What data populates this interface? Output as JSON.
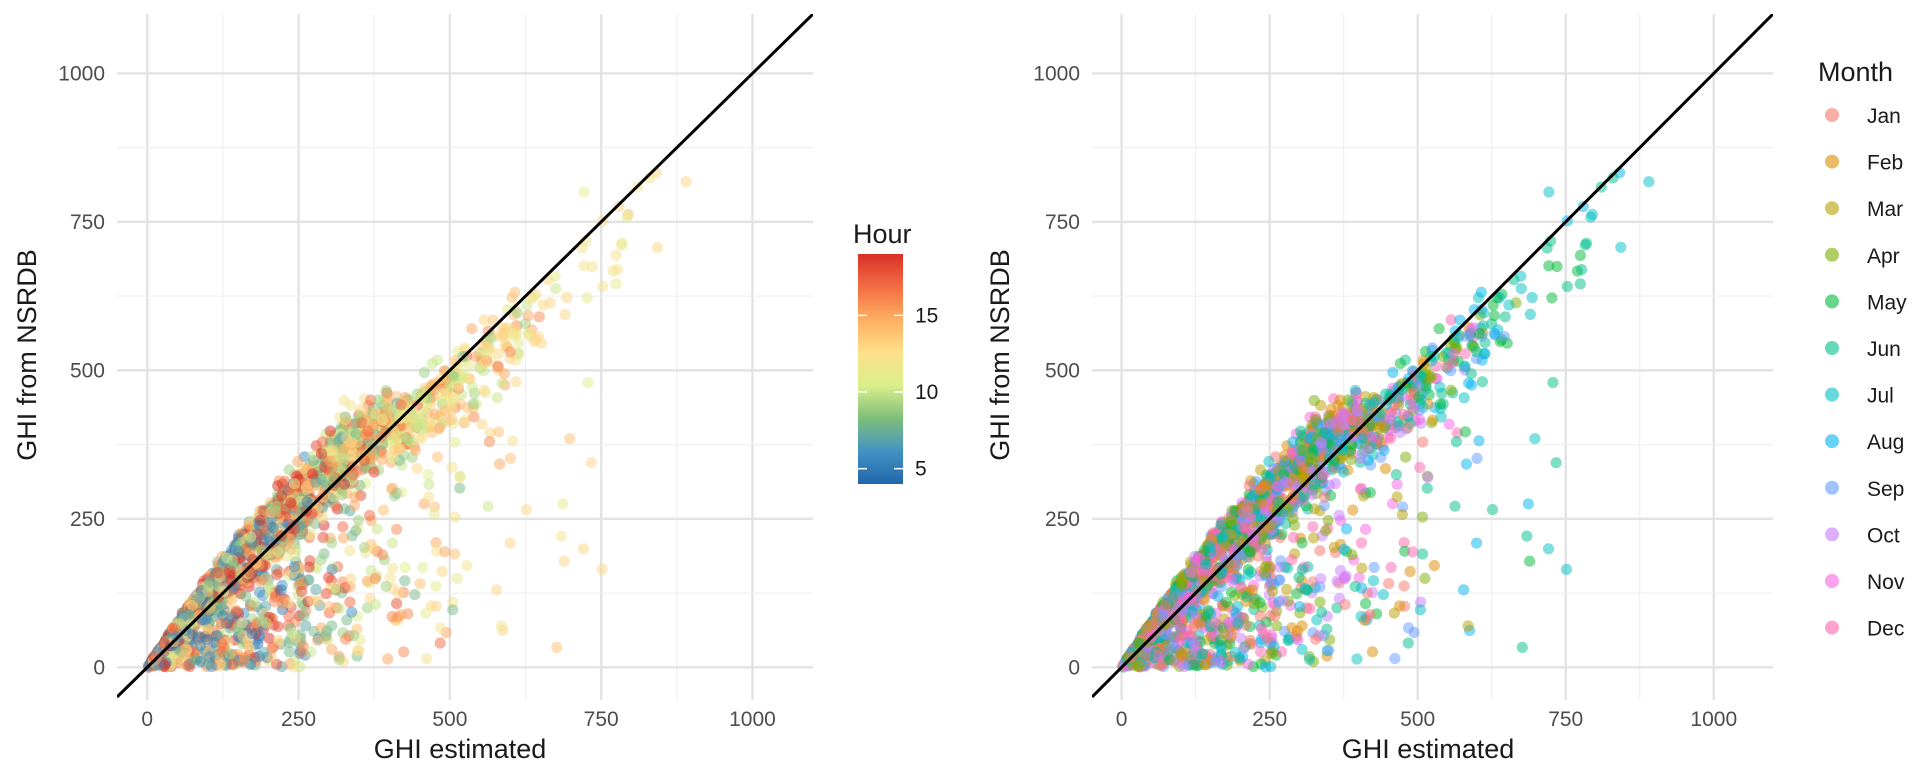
{
  "chart_data": [
    {
      "type": "scatter",
      "title": "",
      "xlabel": "GHI estimated",
      "ylabel": "GHI from NSRDB",
      "xlim": [
        -50,
        1100
      ],
      "ylim": [
        -55,
        1100
      ],
      "x_ticks": [
        0,
        250,
        500,
        750,
        1000
      ],
      "y_ticks": [
        0,
        250,
        500,
        750,
        1000
      ],
      "x_tick_labels": [
        "0",
        "250",
        "500",
        "750",
        "1000"
      ],
      "y_tick_labels": [
        "0",
        "250",
        "500",
        "750",
        "1000"
      ],
      "grid": true,
      "reference_line": {
        "slope": 1,
        "intercept": 0,
        "color": "#000000"
      },
      "color_by": "Hour",
      "legend": {
        "type": "colorbar",
        "title": "Hour",
        "placement": "right",
        "range": [
          4,
          19
        ],
        "ticks": [
          5,
          10,
          15
        ],
        "tick_labels": [
          "5",
          "10",
          "15"
        ],
        "colors": [
          "#2166ac",
          "#4393c3",
          "#7fbf7b",
          "#d9ef8b",
          "#fee08b",
          "#fdae61",
          "#f46d43",
          "#d73027"
        ]
      },
      "point_alpha": 0.5,
      "n_points": 2400
    },
    {
      "type": "scatter",
      "title": "",
      "xlabel": "GHI estimated",
      "ylabel": "GHI from NSRDB",
      "xlim": [
        -50,
        1100
      ],
      "ylim": [
        -55,
        1100
      ],
      "x_ticks": [
        0,
        250,
        500,
        750,
        1000
      ],
      "y_ticks": [
        0,
        250,
        500,
        750,
        1000
      ],
      "x_tick_labels": [
        "0",
        "250",
        "500",
        "750",
        "1000"
      ],
      "y_tick_labels": [
        "0",
        "250",
        "500",
        "750",
        "1000"
      ],
      "grid": true,
      "reference_line": {
        "slope": 1,
        "intercept": 0,
        "color": "#000000"
      },
      "color_by": "Month",
      "legend": {
        "type": "discrete",
        "title": "Month",
        "placement": "right",
        "entries": [
          {
            "label": "Jan",
            "color": "#F8766D"
          },
          {
            "label": "Feb",
            "color": "#DE8C00"
          },
          {
            "label": "Mar",
            "color": "#B79F00"
          },
          {
            "label": "Apr",
            "color": "#7CAE00"
          },
          {
            "label": "May",
            "color": "#00BA38"
          },
          {
            "label": "Jun",
            "color": "#00C08B"
          },
          {
            "label": "Jul",
            "color": "#00BFC4"
          },
          {
            "label": "Aug",
            "color": "#00B4F0"
          },
          {
            "label": "Sep",
            "color": "#619CFF"
          },
          {
            "label": "Oct",
            "color": "#C77CFF"
          },
          {
            "label": "Nov",
            "color": "#F564E3"
          },
          {
            "label": "Dec",
            "color": "#FF64B0"
          }
        ]
      },
      "point_alpha": 0.5,
      "n_points": 2400
    }
  ]
}
